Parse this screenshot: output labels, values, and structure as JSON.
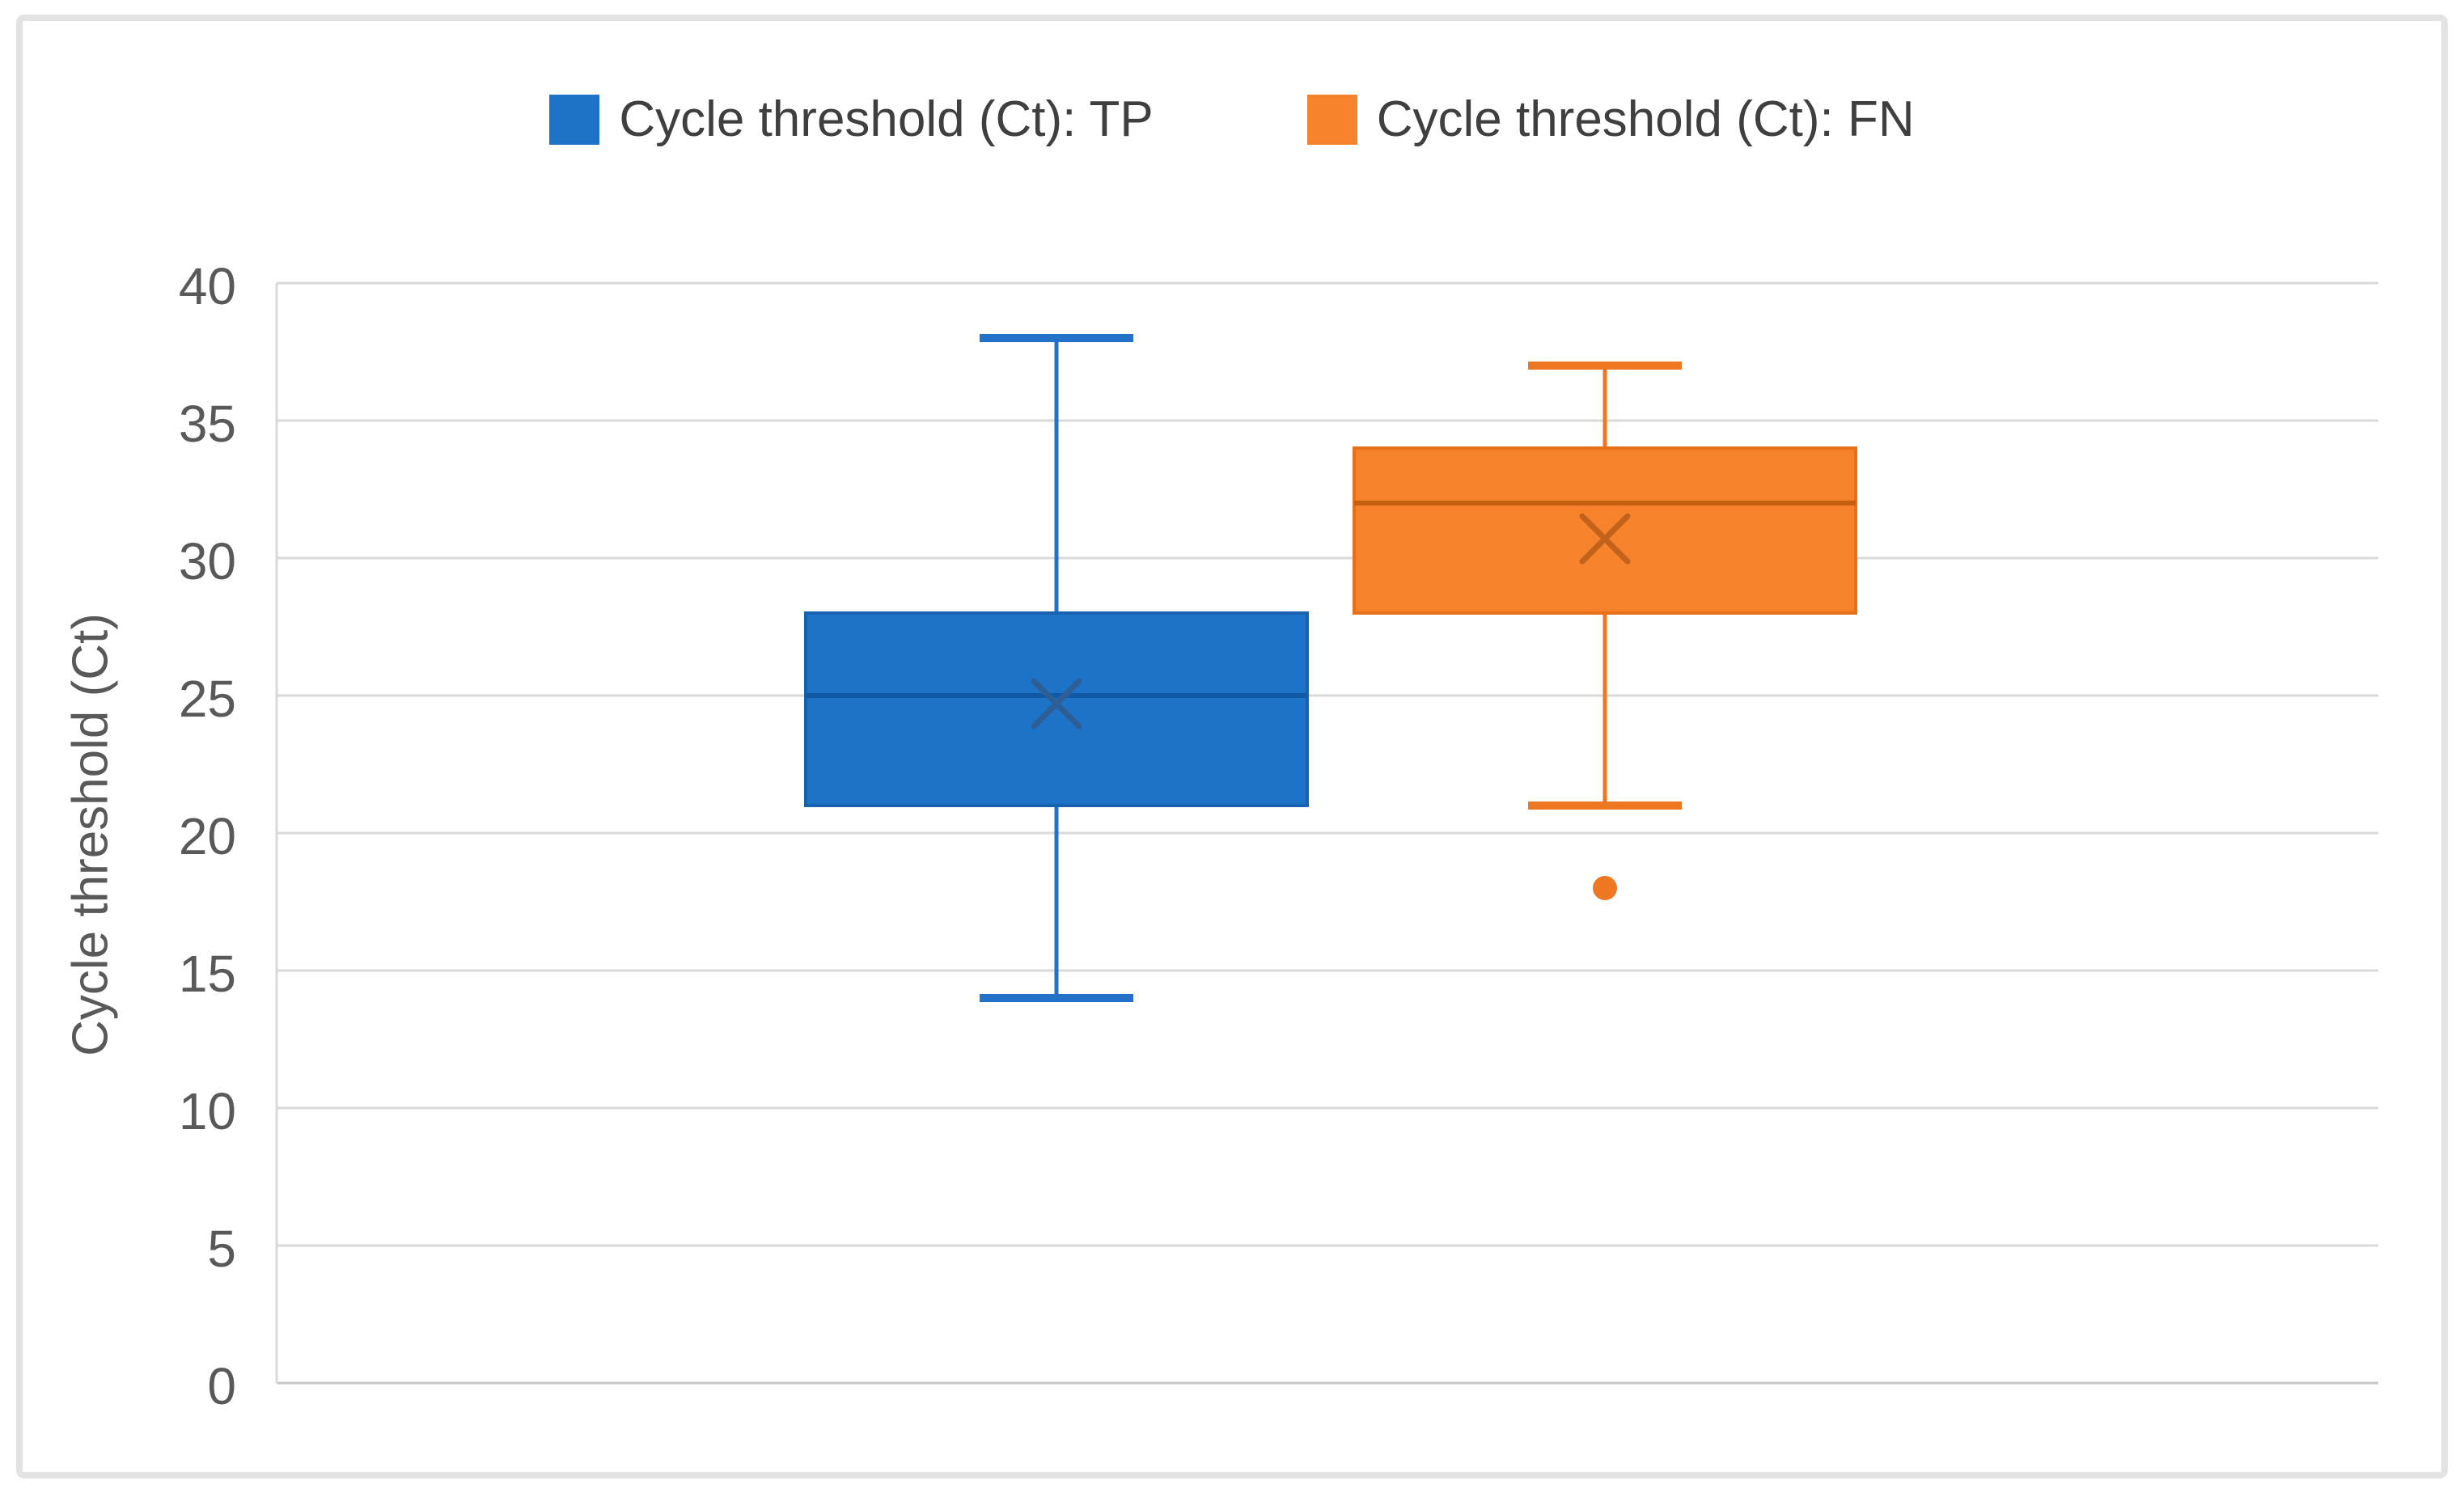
{
  "chart_data": {
    "type": "boxplot",
    "title": "",
    "xlabel": "",
    "ylabel": "Cycle threshold (Ct)",
    "ylim": [
      0,
      40
    ],
    "ytick_step": 5,
    "yticks": [
      0,
      5,
      10,
      15,
      20,
      25,
      30,
      35,
      40
    ],
    "grid": true,
    "legend_position": "top",
    "series": [
      {
        "name": "Cycle threshold (Ct): TP",
        "fill": "#1C73C8",
        "stroke": "#1763B2",
        "median_color": "#1159A4",
        "whisker_color": "#2472C8",
        "mean_marker_color": "#2E5E96",
        "whisker_low": 14,
        "q1": 21,
        "median": 25,
        "q3": 28,
        "whisker_high": 38,
        "mean": 24.7,
        "outliers": []
      },
      {
        "name": "Cycle threshold (Ct): FN",
        "fill": "#F6822B",
        "stroke": "#E8701A",
        "median_color": "#C75F11",
        "whisker_color": "#EE7722",
        "mean_marker_color": "#C1611A",
        "whisker_low": 21,
        "q1": 28,
        "median": 32,
        "q3": 34,
        "whisker_high": 37,
        "mean": 30.7,
        "outliers": [
          18
        ]
      }
    ],
    "colors": {
      "gridline": "#D9D9D9",
      "axis_line": "#C6C6C6",
      "tick_label": "#595959",
      "legend_text": "#3F3F3F",
      "axis_title": "#595959",
      "background": "#FFFFFF",
      "frame_border": "#E3E3E3"
    }
  }
}
